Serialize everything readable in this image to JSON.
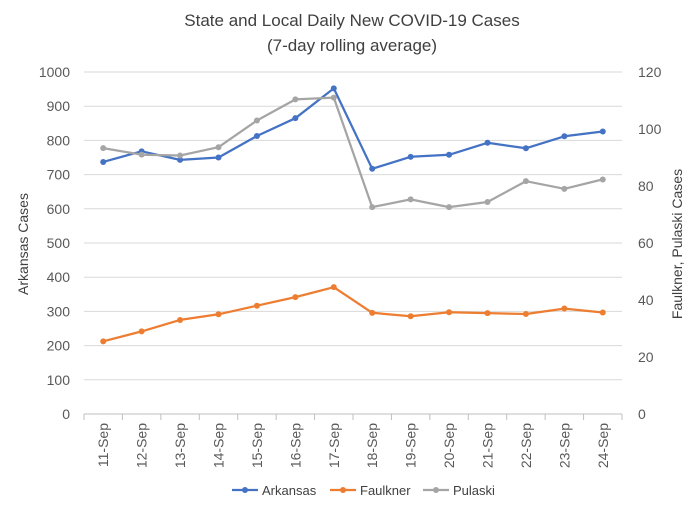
{
  "chart_data": {
    "type": "line",
    "title": "State and Local Daily New COVID-19 Cases",
    "subtitle": "(7-day rolling average)",
    "categories": [
      "11-Sep",
      "12-Sep",
      "13-Sep",
      "14-Sep",
      "15-Sep",
      "16-Sep",
      "17-Sep",
      "18-Sep",
      "19-Sep",
      "20-Sep",
      "21-Sep",
      "22-Sep",
      "23-Sep",
      "24-Sep"
    ],
    "series": [
      {
        "name": "Arkansas",
        "axis": "left",
        "color": "#4472c4",
        "values": [
          737,
          768,
          743,
          750,
          813,
          865,
          952,
          717,
          752,
          758,
          793,
          777,
          812,
          826
        ]
      },
      {
        "name": "Faulkner",
        "axis": "right",
        "color": "#ed7d31",
        "values": [
          25.5,
          29,
          33,
          35,
          38,
          41,
          44.5,
          35.5,
          34.3,
          35.7,
          35.4,
          35.1,
          37,
          35.6
        ]
      },
      {
        "name": "Pulaski",
        "axis": "right",
        "color": "#a5a5a5",
        "values": [
          93.3,
          91,
          90.7,
          93.6,
          103,
          110.4,
          111,
          72.6,
          75.3,
          72.6,
          74.4,
          81.7,
          79,
          82.3
        ]
      }
    ],
    "ylabel_left": "Arkansas Cases",
    "ylabel_right": "Faulkner, Pulaski Cases",
    "ylim_left": [
      0,
      1000
    ],
    "yticks_left": [
      "0",
      "100",
      "200",
      "300",
      "400",
      "500",
      "600",
      "700",
      "800",
      "900",
      "1000"
    ],
    "ylim_right": [
      0,
      120
    ],
    "yticks_right": [
      "0",
      "20",
      "40",
      "60",
      "80",
      "100",
      "120"
    ],
    "grid": true,
    "legend_position": "bottom"
  }
}
